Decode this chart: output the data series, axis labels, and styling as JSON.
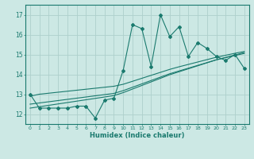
{
  "xlabel": "Humidex (Indice chaleur)",
  "x_values": [
    0,
    1,
    2,
    3,
    4,
    5,
    6,
    7,
    8,
    9,
    10,
    11,
    12,
    13,
    14,
    15,
    16,
    17,
    18,
    19,
    20,
    21,
    22,
    23
  ],
  "main_line": [
    13.0,
    12.3,
    12.3,
    12.3,
    12.3,
    12.4,
    12.4,
    11.8,
    12.7,
    12.8,
    14.2,
    16.5,
    16.3,
    14.4,
    17.0,
    15.9,
    16.4,
    14.9,
    15.6,
    15.3,
    14.9,
    14.7,
    15.0,
    14.3
  ],
  "trend1": [
    12.9,
    13.0,
    13.05,
    13.1,
    13.15,
    13.2,
    13.25,
    13.3,
    13.35,
    13.4,
    13.5,
    13.65,
    13.8,
    13.95,
    14.1,
    14.25,
    14.38,
    14.5,
    14.62,
    14.74,
    14.86,
    14.96,
    15.06,
    15.15
  ],
  "trend2": [
    12.5,
    12.56,
    12.62,
    12.68,
    12.74,
    12.8,
    12.86,
    12.92,
    12.98,
    13.04,
    13.18,
    13.35,
    13.52,
    13.69,
    13.86,
    14.03,
    14.17,
    14.31,
    14.45,
    14.59,
    14.73,
    14.84,
    14.95,
    15.05
  ],
  "trend3": [
    12.3,
    12.37,
    12.44,
    12.51,
    12.58,
    12.65,
    12.72,
    12.79,
    12.86,
    12.93,
    13.08,
    13.26,
    13.44,
    13.62,
    13.8,
    13.98,
    14.13,
    14.28,
    14.43,
    14.58,
    14.73,
    14.85,
    14.97,
    15.1
  ],
  "line_color": "#1a7a6e",
  "bg_color": "#cce8e4",
  "grid_color": "#aed0cc",
  "ylim": [
    11.5,
    17.5
  ],
  "xlim": [
    -0.5,
    23.5
  ],
  "yticks": [
    12,
    13,
    14,
    15,
    16,
    17
  ],
  "xticks": [
    0,
    1,
    2,
    3,
    4,
    5,
    6,
    7,
    8,
    9,
    10,
    11,
    12,
    13,
    14,
    15,
    16,
    17,
    18,
    19,
    20,
    21,
    22,
    23
  ]
}
